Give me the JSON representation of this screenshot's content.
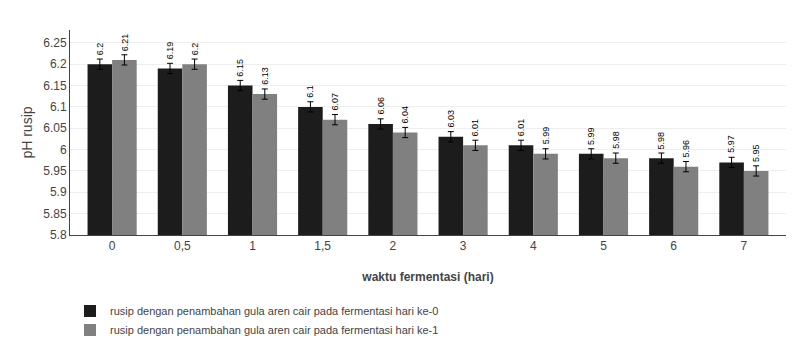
{
  "chart_data": {
    "type": "bar",
    "categories": [
      "0",
      "0,5",
      "1",
      "1,5",
      "2",
      "3",
      "4",
      "5",
      "6",
      "7"
    ],
    "series": [
      {
        "name": "rusip dengan penambahan gula aren cair pada fermentasi hari ke-0",
        "color": "#1c1c1c",
        "values": [
          6.2,
          6.19,
          6.15,
          6.1,
          6.06,
          6.03,
          6.01,
          5.99,
          5.98,
          5.97
        ],
        "errors": [
          0.012,
          0.012,
          0.012,
          0.012,
          0.012,
          0.012,
          0.012,
          0.012,
          0.012,
          0.012
        ]
      },
      {
        "name": "rusip dengan penambahan gula aren cair pada fermentasi hari ke-1",
        "color": "#808080",
        "values": [
          6.21,
          6.2,
          6.13,
          6.07,
          6.04,
          6.01,
          5.99,
          5.98,
          5.96,
          5.95
        ],
        "errors": [
          0.012,
          0.012,
          0.012,
          0.012,
          0.012,
          0.012,
          0.012,
          0.012,
          0.012,
          0.012
        ]
      }
    ],
    "xlabel": "waktu fermentasi (hari)",
    "ylabel": "pH rusip",
    "ylim": [
      5.8,
      6.28
    ],
    "yticks": [
      5.8,
      5.85,
      5.9,
      5.95,
      6,
      6.05,
      6.1,
      6.15,
      6.2,
      6.25
    ],
    "grid": true,
    "data_labels": true,
    "legend": "bottom"
  }
}
